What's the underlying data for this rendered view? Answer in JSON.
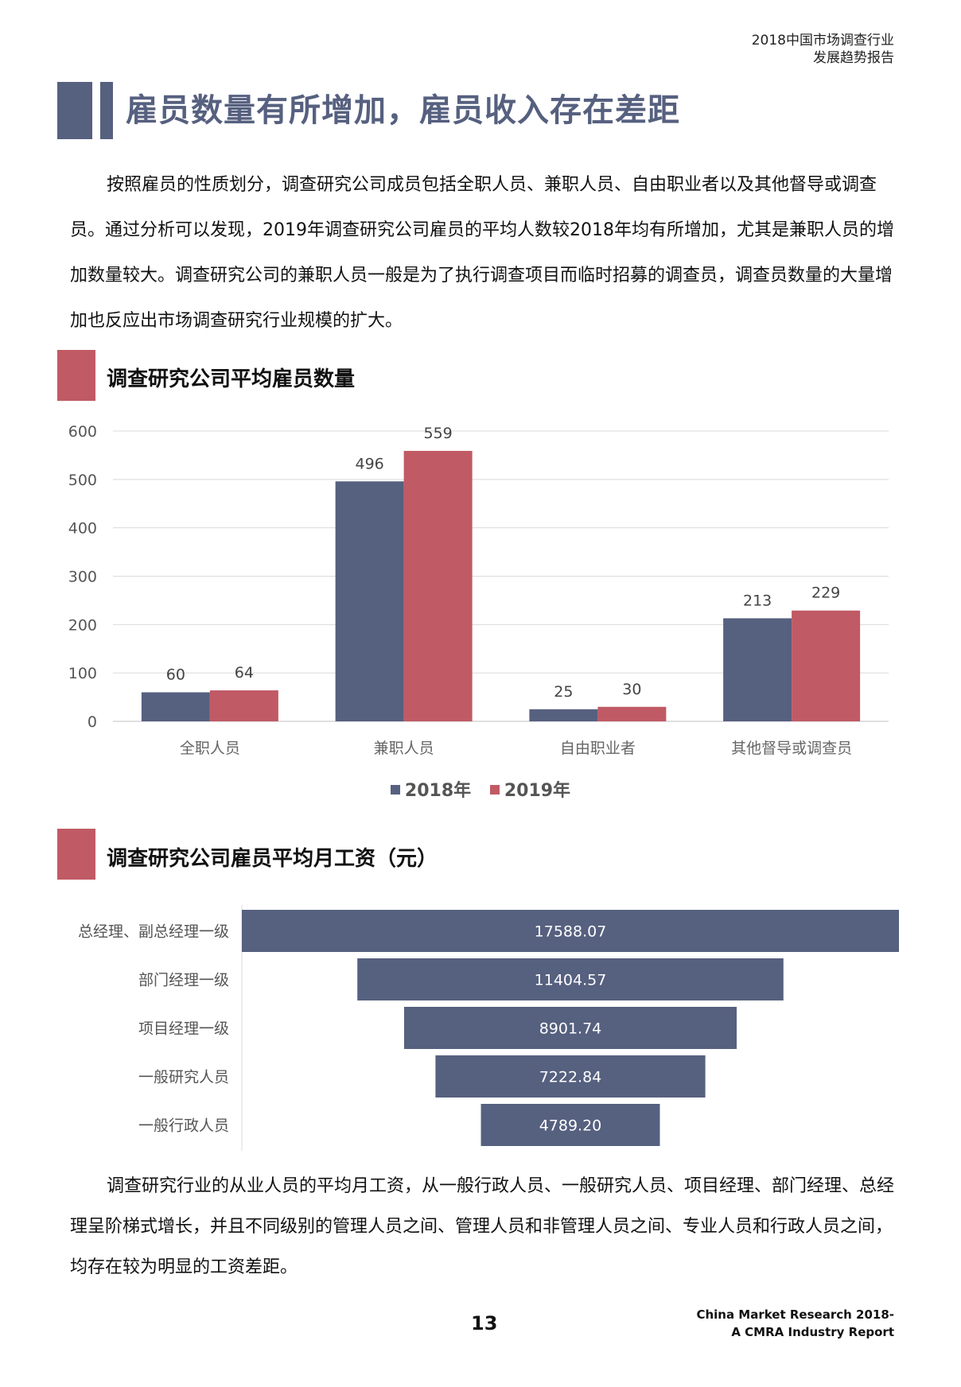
{
  "header": {
    "line1": "2018中国市场调查行业",
    "line2": "发展趋势报告"
  },
  "title": "雇员数量有所增加，雇员收入存在差距",
  "para1": "按照雇员的性质划分，调查研究公司成员包括全职人员、兼职人员、自由职业者以及其他督导或调查员。通过分析可以发现，2019年调查研究公司雇员的平均人数较2018年均有所增加，尤其是兼职人员的增加数量较大。调查研究公司的兼职人员一般是为了执行调查项目而临时招募的调查员，调查员数量的大量增加也反应出市场调查研究行业规模的扩大。",
  "section1": {
    "title": "调查研究公司平均雇员数量"
  },
  "section2": {
    "title": "调查研究公司雇员平均月工资（元）"
  },
  "para2": "调查研究行业的从业人员的平均月工资，从一般行政人员、一般研究人员、项目经理、部门经理、总经理呈阶梯式增长，并且不同级别的管理人员之间、管理人员和非管理人员之间、专业人员和行政人员之间，均存在较为明显的工资差距。",
  "page_number": "13",
  "footer": {
    "line1": "China Market Research 2018-",
    "line2": "A CMRA Industry Report"
  },
  "colors": {
    "navy": "#56607f",
    "red": "#c05a65"
  },
  "chart_data": [
    {
      "type": "bar",
      "title": "调查研究公司平均雇员数量",
      "categories": [
        "全职人员",
        "兼职人员",
        "自由职业者",
        "其他督导或调查员"
      ],
      "series": [
        {
          "name": "2018年",
          "values": [
            60,
            496,
            25,
            213
          ],
          "color": "#56607f"
        },
        {
          "name": "2019年",
          "values": [
            64,
            559,
            30,
            229
          ],
          "color": "#c05a65"
        }
      ],
      "yticks": [
        0,
        100,
        200,
        300,
        400,
        500,
        600
      ],
      "ylim": [
        0,
        600
      ],
      "grid": true,
      "legend": "bottom"
    },
    {
      "type": "bar",
      "orientation": "horizontal-funnel",
      "title": "调查研究公司雇员平均月工资（元）",
      "categories": [
        "总经理、副总经理一级",
        "部门经理一级",
        "项目经理一级",
        "一般研究人员",
        "一般行政人员"
      ],
      "values": [
        17588.07,
        11404.57,
        8901.74,
        7222.84,
        4789.2
      ],
      "labels": [
        "17588.07",
        "11404.57",
        "8901.74",
        "7222.84",
        "4789.20"
      ],
      "color": "#56607f"
    }
  ]
}
